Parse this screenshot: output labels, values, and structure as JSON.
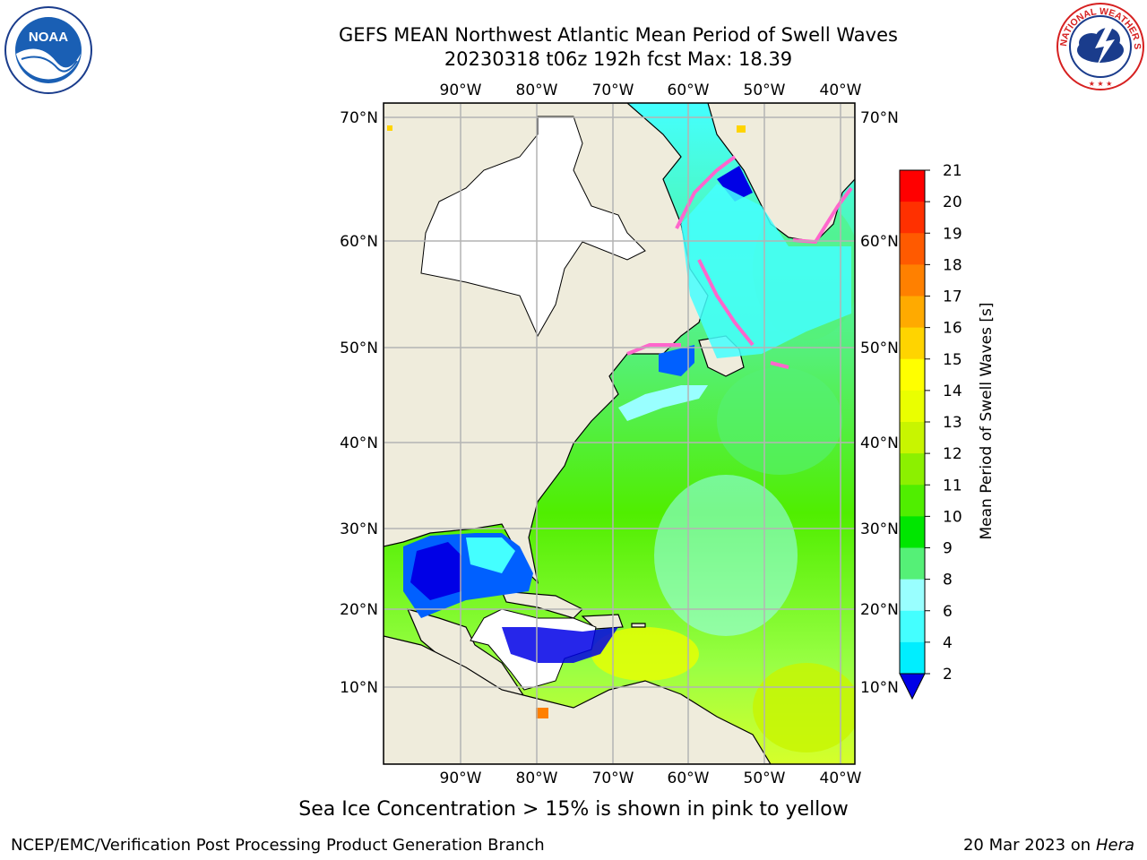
{
  "header": {
    "title": "GEFS MEAN Northwest Atlantic Mean Period of Swell Waves",
    "subtitle": "20230318 t06z 192h fcst   Max: 18.39"
  },
  "logos": {
    "left": "NOAA",
    "right_text": "NATIONAL WEATHER SERVICE"
  },
  "map": {
    "lon_top_labels": [
      "90°W",
      "80°W",
      "70°W",
      "60°W",
      "50°W",
      "40°W"
    ],
    "lon_bottom_labels": [
      "90°W",
      "80°W",
      "70°W",
      "60°W",
      "50°W",
      "40°W"
    ],
    "lat_labels": [
      "70°N",
      "60°N",
      "50°N",
      "40°N",
      "30°N",
      "20°N",
      "10°N"
    ],
    "land_color": "#efecdc",
    "ice_color": "#ff66cc"
  },
  "colorbar": {
    "label": "Mean Period of Swell Waves [s]",
    "ticks": [
      "21",
      "20",
      "19",
      "18",
      "17",
      "16",
      "15",
      "14",
      "13",
      "12",
      "11",
      "10",
      "9",
      "8",
      "6",
      "4",
      "2"
    ],
    "colors": [
      "#ff0000",
      "#ff3000",
      "#ff5a00",
      "#ff8000",
      "#ffaa00",
      "#ffd400",
      "#ffff00",
      "#eaff00",
      "#c8f500",
      "#8cf000",
      "#50ee00",
      "#00e600",
      "#55f077",
      "#99ffff",
      "#44ffff",
      "#00eeff",
      "#00b4ff",
      "#0060ff",
      "#0000e6"
    ]
  },
  "footer": {
    "ice_note": "Sea Ice Concentration > 15% is shown in pink to yellow",
    "credit": "NCEP/EMC/Verification Post Processing Product Generation Branch",
    "date": "20 Mar 2023 on",
    "machine": "Hera"
  }
}
